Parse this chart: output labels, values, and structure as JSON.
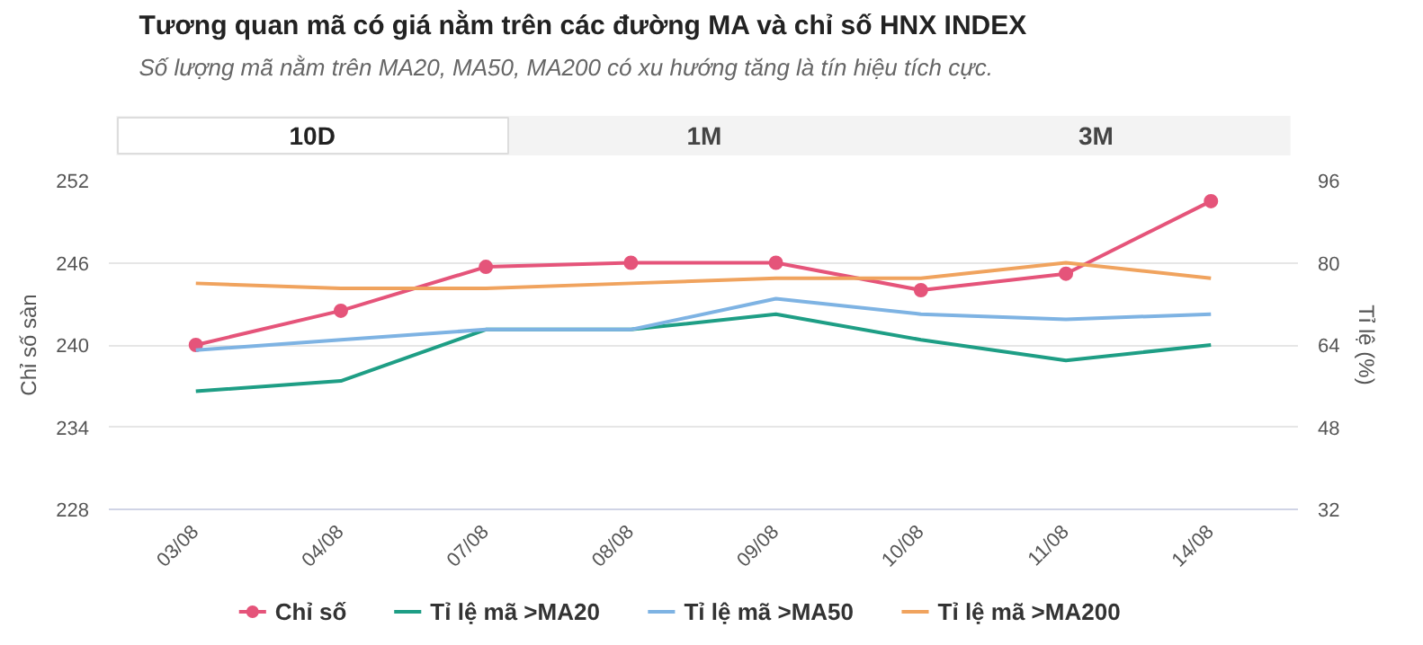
{
  "chart_data": {
    "type": "line",
    "title": "Tương quan mã có giá nằm trên các đường MA và chỉ số HNX INDEX",
    "subtitle": "Số lượng mã nằm trên MA20, MA50, MA200 có xu hướng tăng là tín hiệu tích cực.",
    "annotations": [
      "10D",
      "1M",
      "3M"
    ],
    "ylabel": "Chỉ số sàn",
    "y2label": "Tỉ lệ (%)",
    "categories": [
      "03/08",
      "04/08",
      "07/08",
      "08/08",
      "09/08",
      "10/08",
      "11/08",
      "14/08"
    ],
    "ylim": [
      228,
      252
    ],
    "yticks": [
      228,
      234,
      240,
      246,
      252
    ],
    "y2lim": [
      32,
      96
    ],
    "y2ticks": [
      32,
      48,
      64,
      80,
      96
    ],
    "grid": "y",
    "legend": "bottom",
    "series": [
      {
        "name": "Chỉ số",
        "color": "#e5547a",
        "marker": "circle",
        "values": [
          240,
          242.5,
          245.7,
          246,
          246,
          244,
          245.2,
          250.5
        ]
      },
      {
        "name": "Tỉ lệ mã >MA20",
        "color": "#1e9e85",
        "axis": "y2",
        "marker": "none",
        "values": [
          55,
          57,
          67,
          67,
          70,
          65,
          61,
          64
        ]
      },
      {
        "name": "Tỉ lệ mã >MA50",
        "color": "#7eb3e3",
        "axis": "y2",
        "marker": "none",
        "values": [
          63,
          65,
          67,
          67,
          73,
          70,
          69,
          70
        ]
      },
      {
        "name": "Tỉ lệ mã >MA200",
        "color": "#f0a35e",
        "axis": "y2",
        "marker": "none",
        "values": [
          76,
          75,
          75,
          76,
          77,
          77,
          80,
          77
        ]
      }
    ]
  }
}
